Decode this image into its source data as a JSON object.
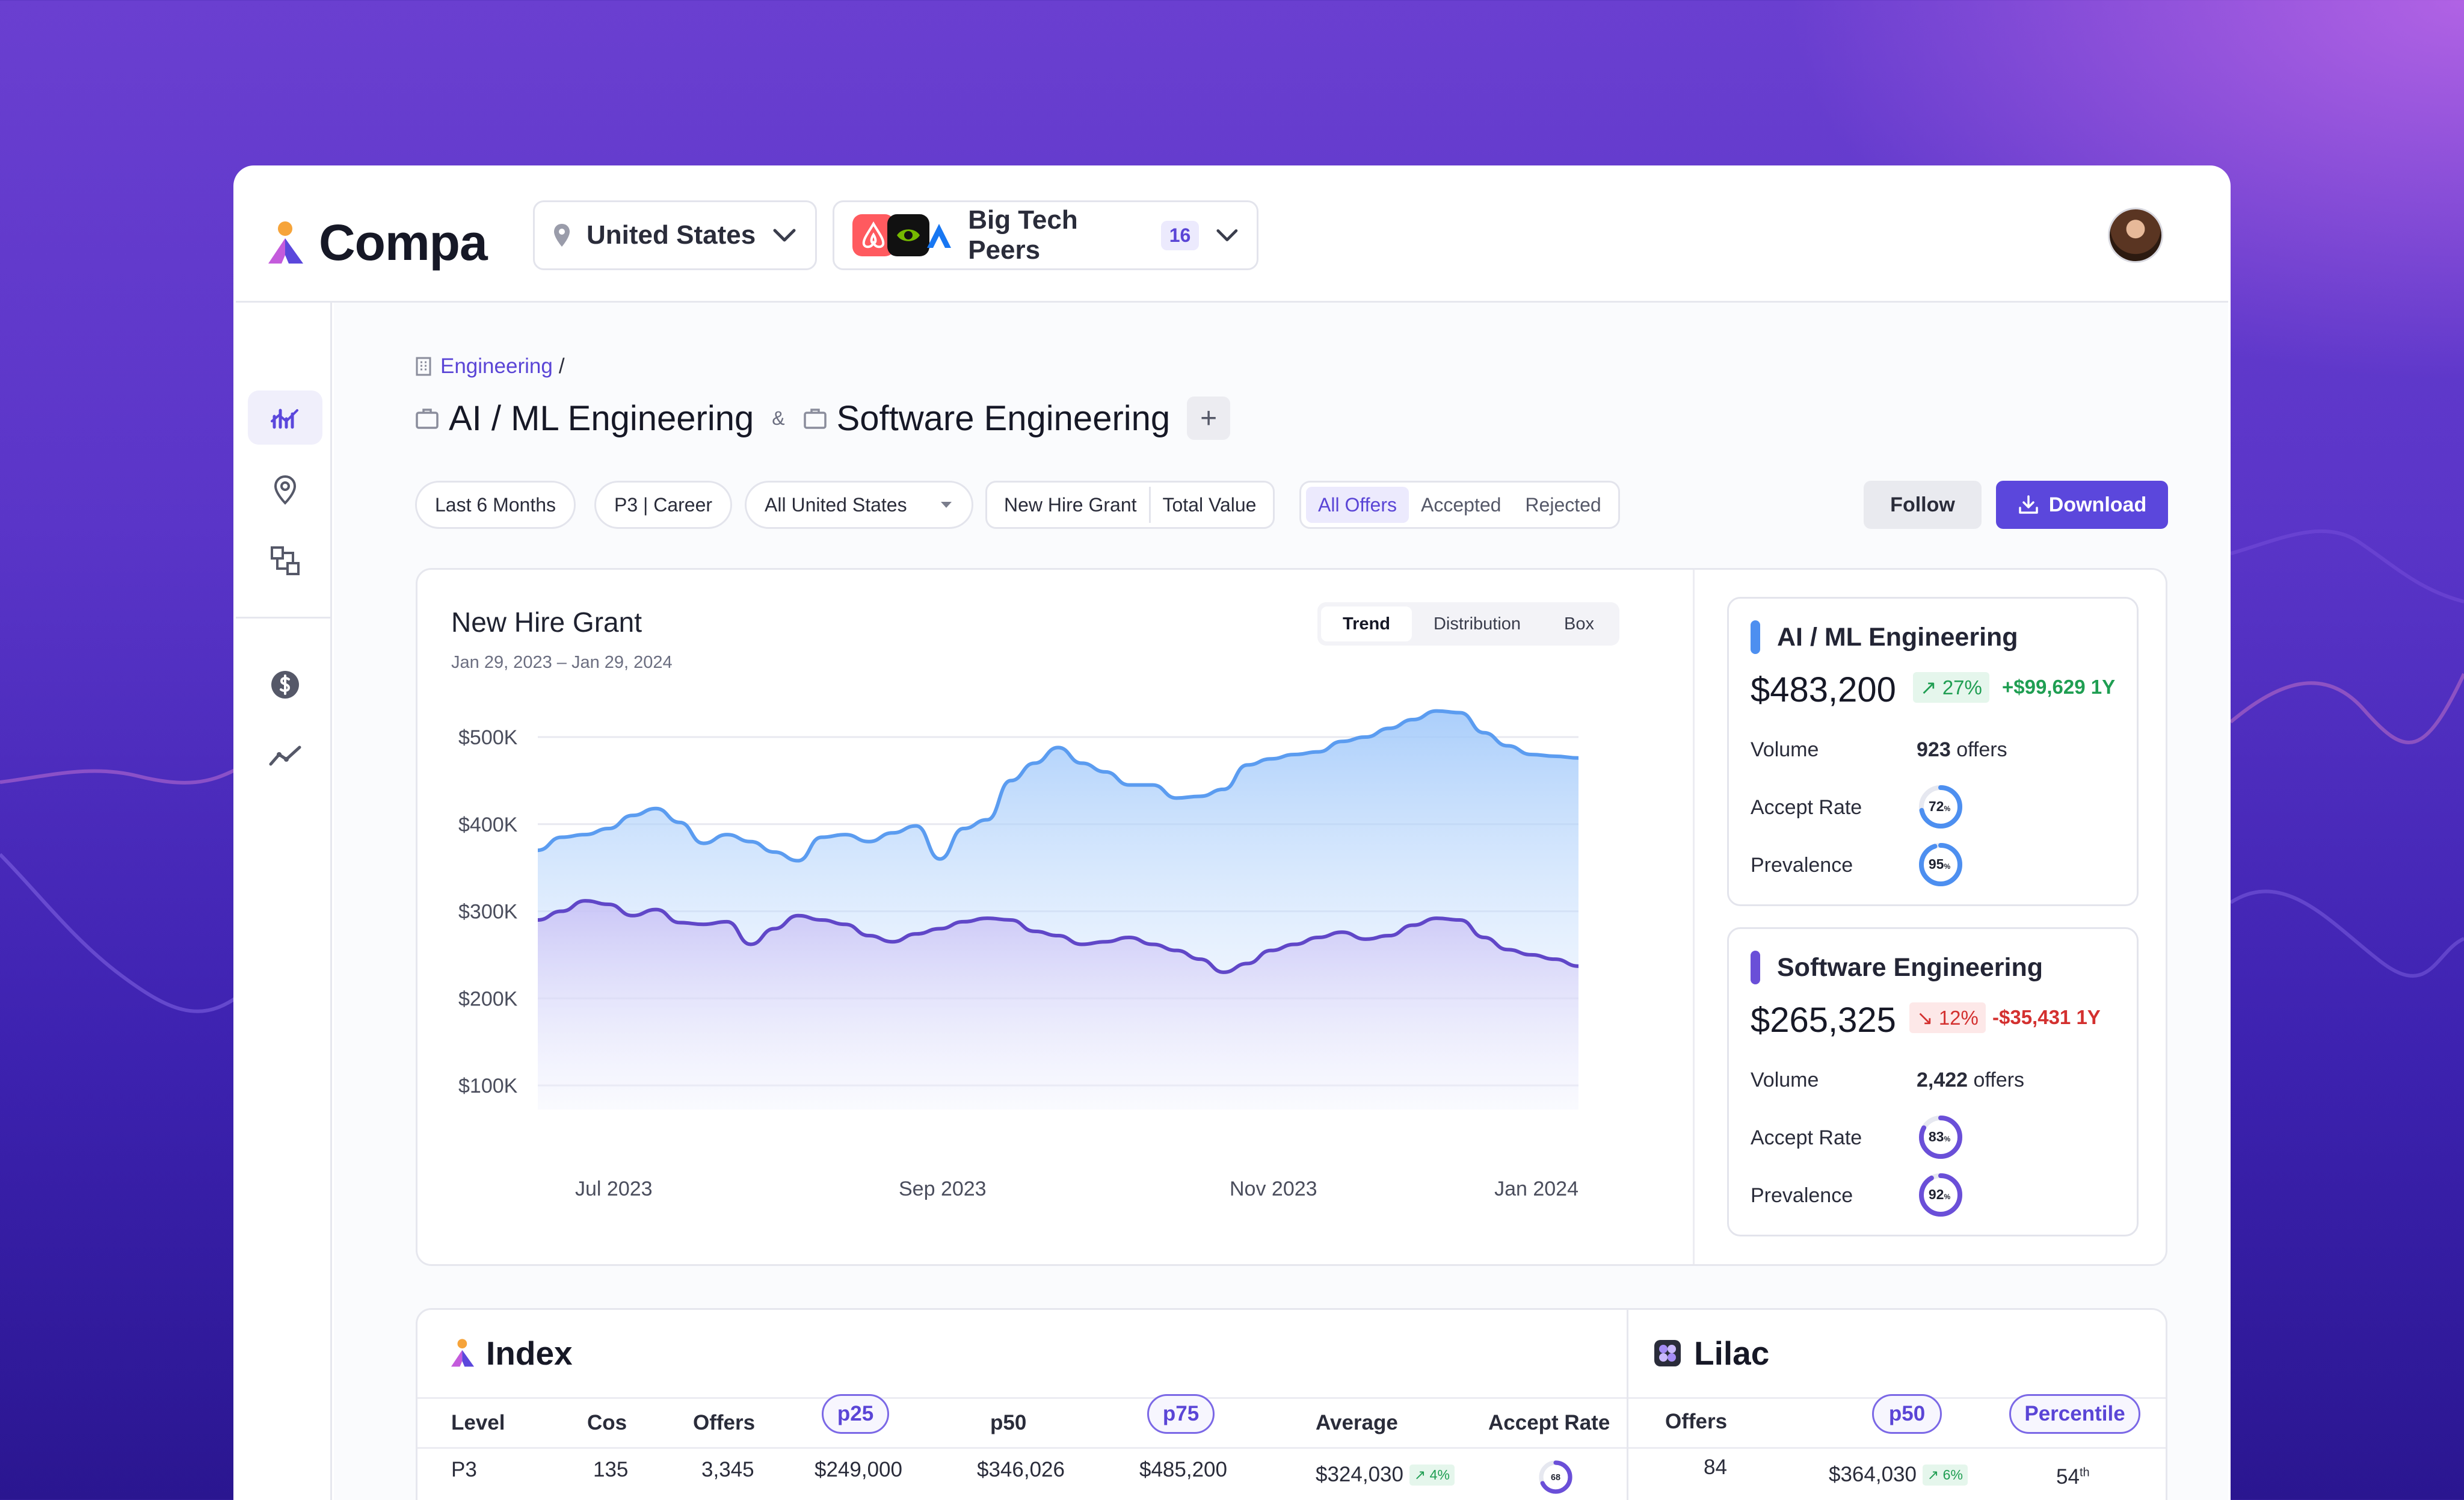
{
  "app": {
    "name": "Compa"
  },
  "header": {
    "location": {
      "label": "United States"
    },
    "peers": {
      "label": "Big Tech Peers",
      "count": "16"
    }
  },
  "sidebar": {
    "items": [
      {
        "icon": "chart-bars-icon",
        "active": true
      },
      {
        "icon": "location-pin-icon",
        "active": false
      },
      {
        "icon": "org-chart-icon",
        "active": false
      },
      {
        "icon": "dollar-circle-icon",
        "active": false
      },
      {
        "icon": "trend-line-icon",
        "active": false
      }
    ]
  },
  "breadcrumb": {
    "root": "Engineering",
    "separator": "/"
  },
  "titles": {
    "first": "AI / ML Engineering",
    "joiner": "&",
    "second": "Software Engineering",
    "add": "+"
  },
  "filters": {
    "period": "Last 6 Months",
    "level": "P3 | Career",
    "region": "All United States",
    "grant": "New Hire Grant",
    "value": "Total Value",
    "offers_all": "All Offers",
    "offers_accepted": "Accepted",
    "offers_rejected": "Rejected"
  },
  "actions": {
    "follow": "Follow",
    "download": "Download"
  },
  "chart": {
    "title": "New Hire Grant",
    "date_range": "Jan 29, 2023 – Jan 29, 2024",
    "views": [
      "Trend",
      "Distribution",
      "Box"
    ],
    "active_view": "Trend"
  },
  "chart_data": {
    "type": "area",
    "title": "New Hire Grant",
    "ylim": [
      100000,
      500000
    ],
    "y_ticks": [
      {
        "value": 500000,
        "label": "$500K"
      },
      {
        "value": 400000,
        "label": "$400K"
      },
      {
        "value": 300000,
        "label": "$300K"
      },
      {
        "value": 200000,
        "label": "$200K"
      },
      {
        "value": 100000,
        "label": "$100K"
      }
    ],
    "x_tick_labels": [
      "Jul 2023",
      "Sep 2023",
      "Nov 2023",
      "Jan 2024"
    ],
    "series": [
      {
        "name": "AI / ML Engineering",
        "color": "#5b9cf0",
        "values": [
          370000,
          385000,
          388000,
          395000,
          410000,
          418000,
          402000,
          378000,
          388000,
          380000,
          368000,
          358000,
          385000,
          388000,
          380000,
          390000,
          398000,
          360000,
          395000,
          405000,
          450000,
          470000,
          488000,
          470000,
          460000,
          445000,
          445000,
          430000,
          432000,
          440000,
          468000,
          475000,
          480000,
          483000,
          495000,
          500000,
          510000,
          520000,
          530000,
          528000,
          505000,
          490000,
          480000,
          478000,
          476000
        ]
      },
      {
        "name": "Software Engineering",
        "color": "#6047c8",
        "values": [
          290000,
          300000,
          312000,
          308000,
          295000,
          302000,
          287000,
          285000,
          288000,
          262000,
          280000,
          295000,
          290000,
          285000,
          272000,
          265000,
          274000,
          280000,
          288000,
          292000,
          290000,
          277000,
          272000,
          262000,
          265000,
          270000,
          262000,
          255000,
          245000,
          230000,
          240000,
          255000,
          262000,
          270000,
          276000,
          268000,
          272000,
          284000,
          292000,
          290000,
          270000,
          256000,
          250000,
          245000,
          237000
        ]
      }
    ]
  },
  "stat_cards": [
    {
      "name": "AI / ML Engineering",
      "color": "#4d8ff0",
      "value": "$483,200",
      "change": "↗ 27%",
      "direction": "up",
      "delta": "+$99,629 1Y",
      "volume_label": "Volume",
      "volume": "923",
      "volume_unit": "offers",
      "accept_label": "Accept Rate",
      "accept_rate": 72,
      "accept_text": "72",
      "prevalence_label": "Prevalence",
      "prevalence": 95,
      "prevalence_text": "95",
      "pct_sign": "%"
    },
    {
      "name": "Software Engineering",
      "color": "#6a4fd8",
      "value": "$265,325",
      "change": "↘ 12%",
      "direction": "down",
      "delta": "-$35,431 1Y",
      "volume_label": "Volume",
      "volume": "2,422",
      "volume_unit": "offers",
      "accept_label": "Accept Rate",
      "accept_rate": 83,
      "accept_text": "83",
      "prevalence_label": "Prevalence",
      "prevalence": 92,
      "prevalence_text": "92",
      "pct_sign": "%"
    }
  ],
  "index_table": {
    "title": "Index",
    "columns": [
      "Level",
      "Cos",
      "Offers",
      "p25",
      "p50",
      "p75",
      "Average",
      "Accept Rate"
    ],
    "row": {
      "level": "P3",
      "cos": "135",
      "offers": "3,345",
      "p25": "$249,000",
      "p50": "$346,026",
      "p75": "$485,200",
      "average": "$324,030",
      "average_change": "↗ 4%",
      "accept_rate": 68,
      "accept_text": "68"
    }
  },
  "lilac_table": {
    "title": "Lilac",
    "columns": [
      "Offers",
      "p50",
      "Percentile"
    ],
    "row": {
      "offers": "84",
      "p50": "$364,030",
      "p50_change": "↗ 6%",
      "percentile": "54",
      "percentile_suffix": "th"
    }
  }
}
